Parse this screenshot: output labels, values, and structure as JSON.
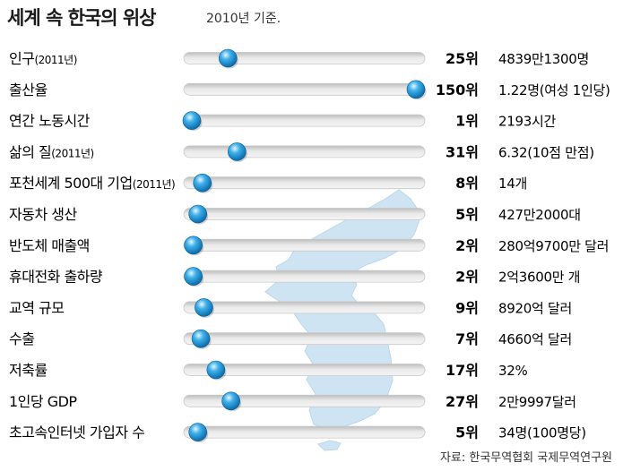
{
  "header": {
    "title": "세계 속 한국의 위상",
    "subtitle": "2010년 기준."
  },
  "source": "자료: 한국무역협회 국제무역연구원",
  "chart_data": {
    "type": "slider-ranking",
    "rank_scale": [
      1,
      150
    ],
    "rows": [
      {
        "label": "인구",
        "label_note": "(2011년)",
        "rank": 25,
        "rank_label": "25위",
        "value": "4839만1300명"
      },
      {
        "label": "출산율",
        "label_note": "",
        "rank": 150,
        "rank_label": "150위",
        "value": "1.22명(여성 1인당)"
      },
      {
        "label": "연간 노동시간",
        "label_note": "",
        "rank": 1,
        "rank_label": "1위",
        "value": "2193시간"
      },
      {
        "label": "삶의 질",
        "label_note": "(2011년)",
        "rank": 31,
        "rank_label": "31위",
        "value": "6.32(10점 만점)"
      },
      {
        "label": "포천세계 500대 기업",
        "label_note": "(2011년)",
        "rank": 8,
        "rank_label": "8위",
        "value": "14개"
      },
      {
        "label": "자동차 생산",
        "label_note": "",
        "rank": 5,
        "rank_label": "5위",
        "value": "427만2000대"
      },
      {
        "label": "반도체 매출액",
        "label_note": "",
        "rank": 2,
        "rank_label": "2위",
        "value": "280억9700만 달러"
      },
      {
        "label": "휴대전화 출하량",
        "label_note": "",
        "rank": 2,
        "rank_label": "2위",
        "value": "2억3600만 개"
      },
      {
        "label": "교역 규모",
        "label_note": "",
        "rank": 9,
        "rank_label": "9위",
        "value": "8920억 달러"
      },
      {
        "label": "수출",
        "label_note": "",
        "rank": 7,
        "rank_label": "7위",
        "value": "4660억 달러"
      },
      {
        "label": "저축률",
        "label_note": "",
        "rank": 17,
        "rank_label": "17위",
        "value": "32%"
      },
      {
        "label": "1인당 GDP",
        "label_note": "",
        "rank": 27,
        "rank_label": "27위",
        "value": "2만9997달러"
      },
      {
        "label": "초고속인터넷 가입자 수",
        "label_note": "",
        "rank": 5,
        "rank_label": "5위",
        "value": "34명(100명당)"
      }
    ]
  },
  "colors": {
    "map_fill": "#cfe4f3",
    "track": "#e4e4e4",
    "track_edge": "#bdbdbd",
    "knob_main": "#1e8fd0",
    "knob_dark": "#0a5f99",
    "knob_highlight": "#e6f6ff"
  }
}
